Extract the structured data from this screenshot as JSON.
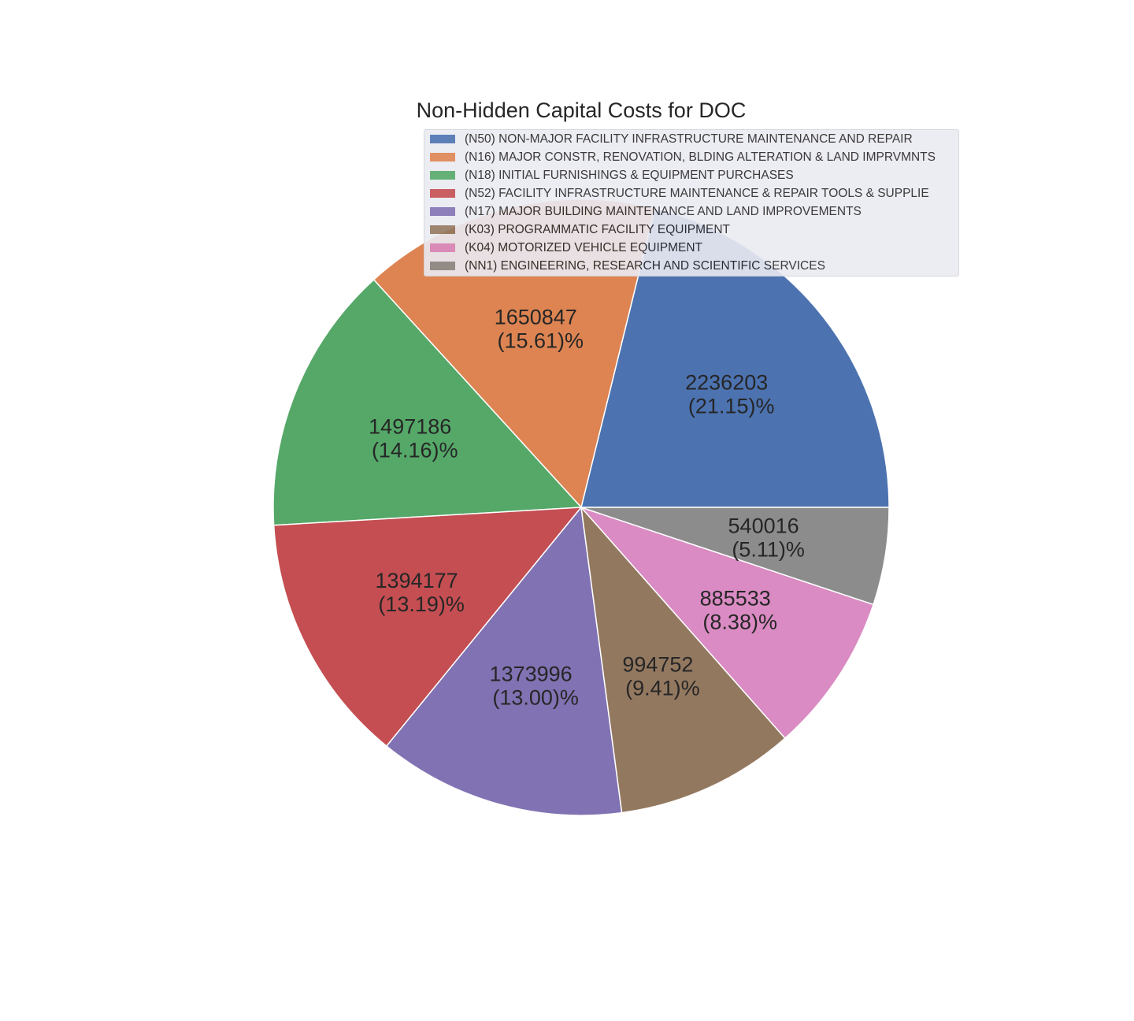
{
  "chart_data": {
    "type": "pie",
    "title": "Non-Hidden Capital Costs for DOC",
    "legend_position": "top-right",
    "start_angle_deg": 0,
    "direction": "counterclockwise",
    "slices": [
      {
        "label": "(N50) NON-MAJOR FACILITY INFRASTRUCTURE MAINTENANCE AND REPAIR",
        "value": 2236203,
        "value_text": "2236203",
        "pct_text": "(21.15)%",
        "color": "#4c72b0"
      },
      {
        "label": "(N16) MAJOR CONSTR, RENOVATION, BLDING ALTERATION & LAND IMPRVMNTS",
        "value": 1650847,
        "value_text": "1650847",
        "pct_text": "(15.61)%",
        "color": "#dd8452"
      },
      {
        "label": "(N18) INITIAL FURNISHINGS & EQUIPMENT PURCHASES",
        "value": 1497186,
        "value_text": "1497186",
        "pct_text": "(14.16)%",
        "color": "#55a868"
      },
      {
        "label": "(N52) FACILITY INFRASTRUCTURE MAINTENANCE & REPAIR TOOLS & SUPPLIE",
        "value": 1394177,
        "value_text": "1394177",
        "pct_text": "(13.19)%",
        "color": "#c44e52"
      },
      {
        "label": "(N17) MAJOR BUILDING MAINTENANCE AND LAND IMPROVEMENTS",
        "value": 1373996,
        "value_text": "1373996",
        "pct_text": "(13.00)%",
        "color": "#8172b3"
      },
      {
        "label": "(K03) PROGRAMMATIC FACILITY EQUIPMENT",
        "value": 994752,
        "value_text": "994752",
        "pct_text": "(9.41)%",
        "color": "#937860"
      },
      {
        "label": "(K04) MOTORIZED VEHICLE EQUIPMENT",
        "value": 885533,
        "value_text": "885533",
        "pct_text": "(8.38)%",
        "color": "#da8bc3"
      },
      {
        "label": "(NN1) ENGINEERING, RESEARCH AND SCIENTIFIC SERVICES",
        "value": 540016,
        "value_text": "540016",
        "pct_text": "(5.11)%",
        "color": "#8c8c8c"
      }
    ]
  }
}
